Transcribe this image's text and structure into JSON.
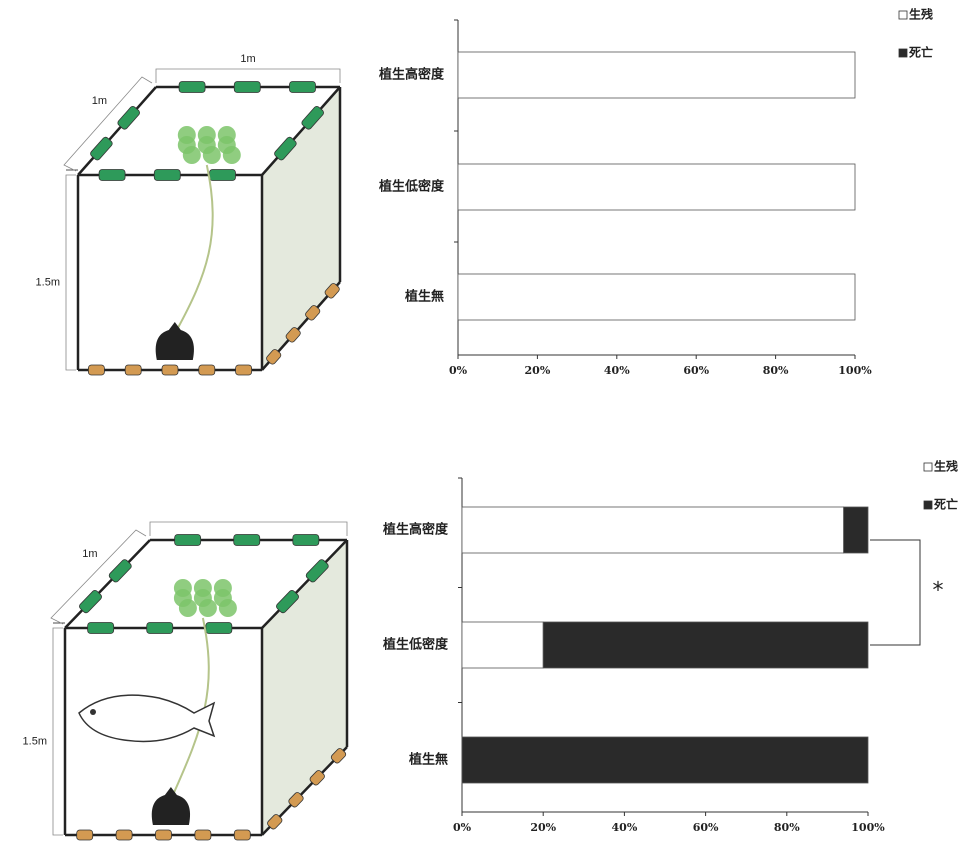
{
  "chart_data": [
    {
      "type": "bar",
      "orientation": "horizontal",
      "stacked": true,
      "categories": [
        "植生高密度",
        "植生低密度",
        "植生無"
      ],
      "series": [
        {
          "name": "生残",
          "color": "#ffffff",
          "values": [
            100,
            100,
            100
          ]
        },
        {
          "name": "死亡",
          "color": "#2a2a2a",
          "values": [
            0,
            0,
            0
          ]
        }
      ],
      "xlim": [
        0,
        100
      ],
      "xticks": [
        {
          "value": 0,
          "label": "0%"
        },
        {
          "value": 20,
          "label": "20%"
        },
        {
          "value": 40,
          "label": "40%"
        },
        {
          "value": 60,
          "label": "60%"
        },
        {
          "value": 80,
          "label": "80%"
        },
        {
          "value": 100,
          "label": "100%"
        }
      ],
      "legend": "top-right"
    },
    {
      "type": "bar",
      "orientation": "horizontal",
      "stacked": true,
      "categories": [
        "植生高密度",
        "植生低密度",
        "植生無"
      ],
      "series": [
        {
          "name": "生残",
          "color": "#ffffff",
          "values": [
            94,
            20,
            0
          ]
        },
        {
          "name": "死亡",
          "color": "#2a2a2a",
          "values": [
            6,
            80,
            100
          ]
        }
      ],
      "xlim": [
        0,
        100
      ],
      "xticks": [
        {
          "value": 0,
          "label": "0%"
        },
        {
          "value": 20,
          "label": "20%"
        },
        {
          "value": 40,
          "label": "40%"
        },
        {
          "value": 60,
          "label": "60%"
        },
        {
          "value": 80,
          "label": "80%"
        },
        {
          "value": 100,
          "label": "100%"
        }
      ],
      "legend": "top-right",
      "annotation": "*"
    }
  ],
  "diagrams": [
    {
      "width_label": "1m",
      "depth_label": "1m",
      "height_label": "1.5m",
      "fish": false
    },
    {
      "depth_label": "1m",
      "height_label": "1.5m",
      "fish": true
    }
  ]
}
